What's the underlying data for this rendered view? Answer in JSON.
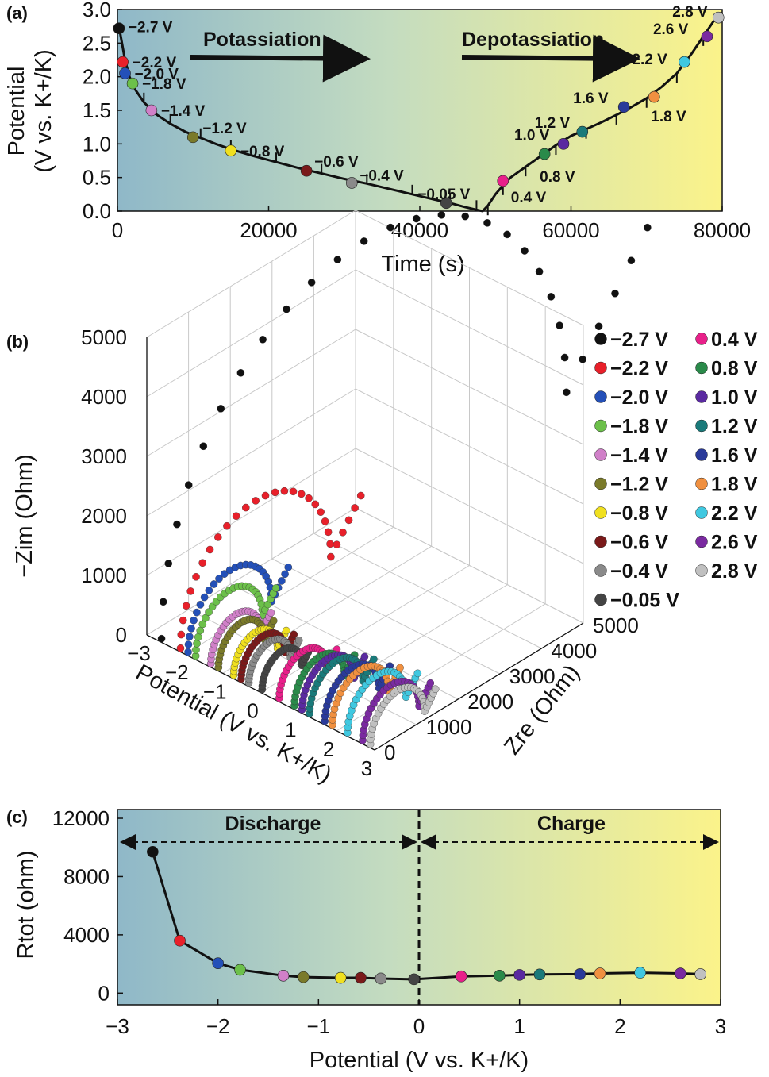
{
  "chart_data": [
    {
      "panel": "(a)",
      "type": "line",
      "xlabel": "Time (s)",
      "ylabel": "Potential (V vs. K+/K)",
      "ylabel_line1": "Potential",
      "ylabel_line2": "(V vs. K+/K)",
      "xlim": [
        0,
        80000
      ],
      "ylim": [
        0.0,
        3.0
      ],
      "xticks": [
        0,
        20000,
        40000,
        60000,
        80000
      ],
      "yticks": [
        0.0,
        0.5,
        1.0,
        1.5,
        2.0,
        2.5,
        3.0
      ],
      "ytick_labels": [
        "0.0",
        "0.5",
        "1.0",
        "1.5",
        "2.0",
        "2.5",
        "3.0"
      ],
      "annotations": [
        "Potassiation",
        "Depotassiation"
      ],
      "curve": {
        "t": [
          200,
          600,
          1000,
          1600,
          2400,
          3500,
          5000,
          7000,
          9000,
          11000,
          13000,
          15000,
          18000,
          21000,
          24000,
          27000,
          30000,
          33000,
          36000,
          39000,
          42000,
          44000,
          46000,
          47500,
          48300,
          49000,
          50000,
          51000,
          52000,
          54000,
          56000,
          58000,
          60000,
          62000,
          64000,
          66000,
          68000,
          70000,
          72000,
          74000,
          76000,
          77500,
          79000,
          80000
        ],
        "v": [
          2.75,
          2.5,
          2.25,
          2.0,
          1.8,
          1.62,
          1.45,
          1.3,
          1.18,
          1.09,
          1.0,
          0.92,
          0.82,
          0.73,
          0.64,
          0.56,
          0.48,
          0.41,
          0.33,
          0.25,
          0.17,
          0.12,
          0.06,
          0.02,
          0.0,
          0.08,
          0.25,
          0.38,
          0.5,
          0.66,
          0.82,
          0.98,
          1.12,
          1.22,
          1.32,
          1.43,
          1.55,
          1.68,
          1.85,
          2.05,
          2.35,
          2.6,
          2.85,
          2.95
        ]
      },
      "points": [
        {
          "label": "−2.7 V",
          "t": 200,
          "v": 2.72,
          "color": "#111111"
        },
        {
          "label": "−2.2 V",
          "t": 700,
          "v": 2.22,
          "color": "#e8202a"
        },
        {
          "label": "−2.0 V",
          "t": 1000,
          "v": 2.05,
          "color": "#2450b8"
        },
        {
          "label": "−1.8 V",
          "t": 2000,
          "v": 1.9,
          "color": "#6cc04a"
        },
        {
          "label": "−1.4 V",
          "t": 4500,
          "v": 1.5,
          "color": "#d080c8"
        },
        {
          "label": "−1.2 V",
          "t": 10000,
          "v": 1.1,
          "color": "#7a7a2a"
        },
        {
          "label": "−0.8 V",
          "t": 15000,
          "v": 0.9,
          "color": "#f0e020"
        },
        {
          "label": "−0.6 V",
          "t": 25000,
          "v": 0.6,
          "color": "#7a1a1a"
        },
        {
          "label": "−0.4 V",
          "t": 31000,
          "v": 0.42,
          "color": "#8a8a8a"
        },
        {
          "label": "−0.05 V",
          "t": 43500,
          "v": 0.12,
          "color": "#444444"
        },
        {
          "label": "0.4 V",
          "t": 51000,
          "v": 0.45,
          "color": "#e8208a"
        },
        {
          "label": "0.8 V",
          "t": 56500,
          "v": 0.85,
          "color": "#2a8a4a"
        },
        {
          "label": "1.0 V",
          "t": 59000,
          "v": 1.0,
          "color": "#5a2aa0"
        },
        {
          "label": "1.2 V",
          "t": 61500,
          "v": 1.18,
          "color": "#1a7a7a"
        },
        {
          "label": "1.6 V",
          "t": 67000,
          "v": 1.55,
          "color": "#2a3a9a"
        },
        {
          "label": "1.8 V",
          "t": 71000,
          "v": 1.7,
          "color": "#f09040"
        },
        {
          "label": "2.2 V",
          "t": 75000,
          "v": 2.22,
          "color": "#40c8e0"
        },
        {
          "label": "2.6 V",
          "t": 78000,
          "v": 2.6,
          "color": "#7a2aa0"
        },
        {
          "label": "2.8 V",
          "t": 79500,
          "v": 2.88,
          "color": "#c0c0c0"
        }
      ]
    },
    {
      "panel": "(b)",
      "type": "scatter",
      "title": "",
      "zlabel": "−Zim (Ohm)",
      "xlabel": "Potential (V vs. K+/K)",
      "ylabel": "Zre (Ohm)",
      "potential_range": [
        -3,
        3
      ],
      "zre_range": [
        0,
        5000
      ],
      "zim_range": [
        0,
        5000
      ],
      "potential_ticks": [
        "−3",
        "−2",
        "−1",
        "0",
        "1",
        "2",
        "3"
      ],
      "zre_ticks": [
        "0",
        "1000",
        "2000",
        "3000",
        "4000",
        "5000"
      ],
      "zim_ticks": [
        "0",
        "1000",
        "2000",
        "3000",
        "4000",
        "5000"
      ],
      "legend": [
        {
          "label": "−2.7 V",
          "color": "#111111"
        },
        {
          "label": "−2.2 V",
          "color": "#e8202a"
        },
        {
          "label": "−2.0 V",
          "color": "#2450b8"
        },
        {
          "label": "−1.8 V",
          "color": "#6cc04a"
        },
        {
          "label": "−1.4 V",
          "color": "#d080c8"
        },
        {
          "label": "−1.2 V",
          "color": "#7a7a2a"
        },
        {
          "label": "−0.8 V",
          "color": "#f0e020"
        },
        {
          "label": "−0.6 V",
          "color": "#7a1a1a"
        },
        {
          "label": "−0.4 V",
          "color": "#8a8a8a"
        },
        {
          "label": "−0.05 V",
          "color": "#444444"
        },
        {
          "label": "0.4 V",
          "color": "#e8208a"
        },
        {
          "label": "0.8 V",
          "color": "#2a8a4a"
        },
        {
          "label": "1.0 V",
          "color": "#5a2aa0"
        },
        {
          "label": "1.2 V",
          "color": "#1a7a7a"
        },
        {
          "label": "1.6 V",
          "color": "#2a3a9a"
        },
        {
          "label": "1.8 V",
          "color": "#f09040"
        },
        {
          "label": "2.2 V",
          "color": "#40c8e0"
        },
        {
          "label": "2.6 V",
          "color": "#7a2aa0"
        },
        {
          "label": "2.8 V",
          "color": "#c0c0c0"
        }
      ],
      "series": [
        {
          "potential": -2.7,
          "R": 9700,
          "color": "#111111"
        },
        {
          "potential": -2.2,
          "R": 3600,
          "color": "#e8202a"
        },
        {
          "potential": -2.0,
          "R": 2000,
          "color": "#2450b8"
        },
        {
          "potential": -1.8,
          "R": 1600,
          "color": "#6cc04a"
        },
        {
          "potential": -1.4,
          "R": 1200,
          "color": "#d080c8"
        },
        {
          "potential": -1.2,
          "R": 1100,
          "color": "#7a7a2a"
        },
        {
          "potential": -0.8,
          "R": 1050,
          "color": "#f0e020"
        },
        {
          "potential": -0.6,
          "R": 1050,
          "color": "#7a1a1a"
        },
        {
          "potential": -0.4,
          "R": 1000,
          "color": "#8a8a8a"
        },
        {
          "potential": -0.05,
          "R": 950,
          "color": "#444444"
        },
        {
          "potential": 0.4,
          "R": 1150,
          "color": "#e8208a"
        },
        {
          "potential": 0.8,
          "R": 1200,
          "color": "#2a8a4a"
        },
        {
          "potential": 1.0,
          "R": 1250,
          "color": "#5a2aa0"
        },
        {
          "potential": 1.2,
          "R": 1280,
          "color": "#1a7a7a"
        },
        {
          "potential": 1.6,
          "R": 1300,
          "color": "#2a3a9a"
        },
        {
          "potential": 1.8,
          "R": 1350,
          "color": "#f09040"
        },
        {
          "potential": 2.2,
          "R": 1400,
          "color": "#40c8e0"
        },
        {
          "potential": 2.6,
          "R": 1350,
          "color": "#7a2aa0"
        },
        {
          "potential": 2.8,
          "R": 1300,
          "color": "#c0c0c0"
        }
      ]
    },
    {
      "panel": "(c)",
      "type": "line",
      "xlabel": "Potential (V vs. K+/K)",
      "ylabel": "Rtot (ohm)",
      "xlim": [
        -3,
        3
      ],
      "ylim": [
        -800,
        12600
      ],
      "xticks": [
        -3,
        -2,
        -1,
        0,
        1,
        2,
        3
      ],
      "xtick_labels": [
        "−3",
        "−2",
        "−1",
        "0",
        "1",
        "2",
        "3"
      ],
      "yticks": [
        0,
        4000,
        8000,
        12000
      ],
      "ytick_labels": [
        "0",
        "4000",
        "8000",
        "12000"
      ],
      "regions": [
        "Discharge",
        "Charge"
      ],
      "points": [
        {
          "x": -2.65,
          "y": 9700,
          "color": "#111111"
        },
        {
          "x": -2.38,
          "y": 3600,
          "color": "#e8202a"
        },
        {
          "x": -2.0,
          "y": 2050,
          "color": "#2450b8"
        },
        {
          "x": -1.78,
          "y": 1600,
          "color": "#6cc04a"
        },
        {
          "x": -1.35,
          "y": 1200,
          "color": "#d080c8"
        },
        {
          "x": -1.15,
          "y": 1100,
          "color": "#7a7a2a"
        },
        {
          "x": -0.78,
          "y": 1050,
          "color": "#f0e020"
        },
        {
          "x": -0.58,
          "y": 1050,
          "color": "#7a1a1a"
        },
        {
          "x": -0.38,
          "y": 1000,
          "color": "#8a8a8a"
        },
        {
          "x": -0.05,
          "y": 950,
          "color": "#444444"
        },
        {
          "x": 0.42,
          "y": 1150,
          "color": "#e8208a"
        },
        {
          "x": 0.8,
          "y": 1200,
          "color": "#2a8a4a"
        },
        {
          "x": 1.0,
          "y": 1250,
          "color": "#5a2aa0"
        },
        {
          "x": 1.2,
          "y": 1280,
          "color": "#1a7a7a"
        },
        {
          "x": 1.6,
          "y": 1300,
          "color": "#2a3a9a"
        },
        {
          "x": 1.8,
          "y": 1350,
          "color": "#f09040"
        },
        {
          "x": 2.2,
          "y": 1400,
          "color": "#40c8e0"
        },
        {
          "x": 2.6,
          "y": 1350,
          "color": "#7a2aa0"
        },
        {
          "x": 2.8,
          "y": 1300,
          "color": "#c0c0c0"
        }
      ]
    }
  ]
}
